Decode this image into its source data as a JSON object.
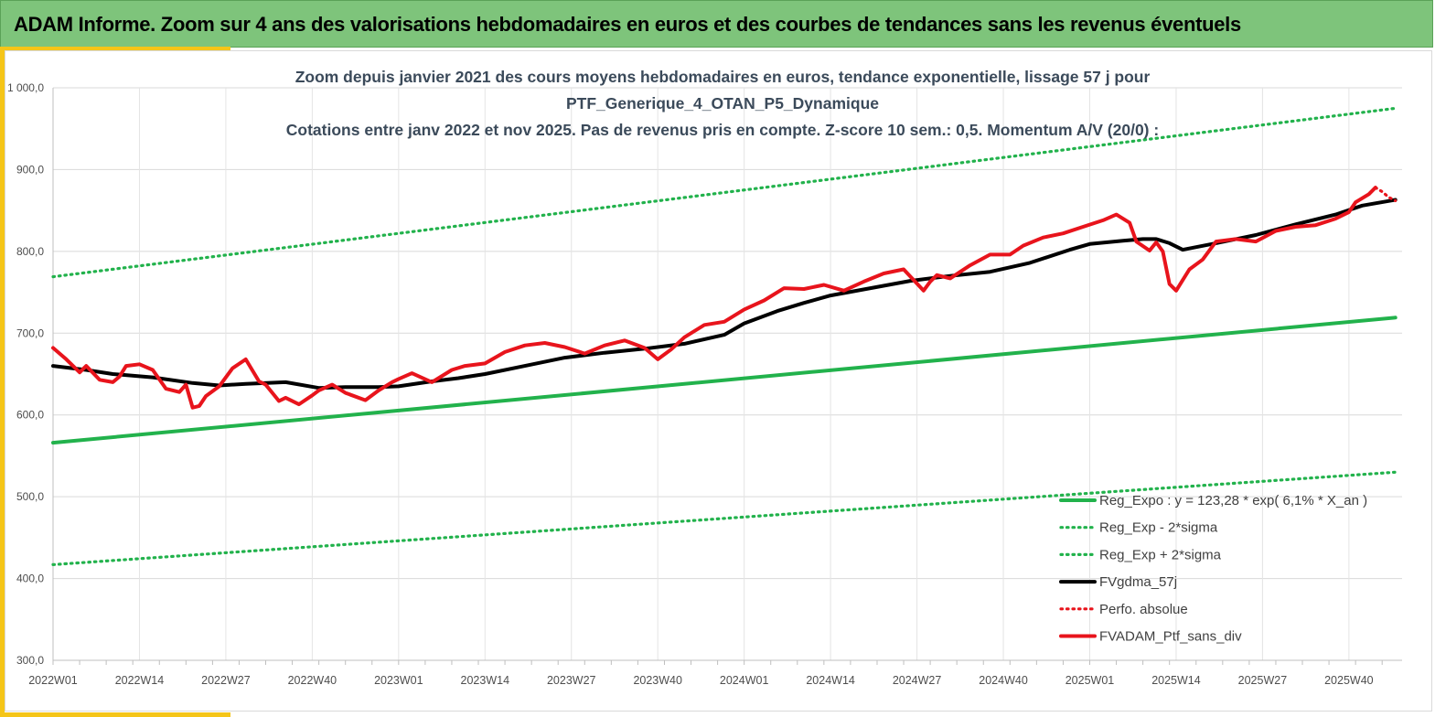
{
  "header": {
    "title": "ADAM Informe. Zoom sur 4 ans des valorisations hebdomadaires en euros et des courbes de tendances sans les revenus éventuels"
  },
  "colors": {
    "header_bg": "#7ec47b",
    "accent": "#f5c518",
    "trend": "#22b24c",
    "moving_avg": "#000000",
    "portfolio": "#e8141c"
  },
  "chart_data": {
    "type": "line",
    "title_lines": [
      "Zoom depuis janvier 2021 des cours moyens hebdomadaires  en euros, tendance exponentielle, lissage 57 j pour",
      "PTF_Generique_4_OTAN_P5_Dynamique",
      "Cotations entre janv 2022 et nov 2025. Pas de revenus pris en compte. Z-score 10 sem.: 0,5. Momentum A/V (20/0) :"
    ],
    "x_tick_labels": [
      "2022W01",
      "2022W14",
      "2022W27",
      "2022W40",
      "2023W01",
      "2023W14",
      "2023W27",
      "2023W40",
      "2024W01",
      "2024W14",
      "2024W27",
      "2024W40",
      "2025W01",
      "2025W14",
      "2025W27",
      "2025W40"
    ],
    "y_tick_labels": [
      "300,0",
      "400,0",
      "500,0",
      "600,0",
      "700,0",
      "800,0",
      "900,0",
      "1 000,0"
    ],
    "ylim": [
      300,
      1000
    ],
    "grid": true,
    "legend_position": "bottom-right",
    "series": [
      {
        "name": "Reg_Expo : y = 123,28 * exp( 6,1% *  X_an )",
        "style": "solid-thick",
        "color": "#22b24c",
        "x": [
          "2022W01",
          "2025W47"
        ],
        "values": [
          566,
          719
        ]
      },
      {
        "name": "Reg_Exp - 2*sigma",
        "style": "dotted",
        "color": "#22b24c",
        "x": [
          "2022W01",
          "2025W47"
        ],
        "values": [
          417,
          530
        ]
      },
      {
        "name": "Reg_Exp + 2*sigma",
        "style": "dotted",
        "color": "#22b24c",
        "x": [
          "2022W01",
          "2025W47"
        ],
        "values": [
          769,
          975
        ]
      },
      {
        "name": "FVgdma_57j",
        "style": "solid-thick",
        "color": "#000000",
        "x": [
          "2022W01",
          "2022W06",
          "2022W10",
          "2022W16",
          "2022W22",
          "2022W26",
          "2022W30",
          "2022W36",
          "2022W41",
          "2022W45",
          "2022W50",
          "2023W01",
          "2023W06",
          "2023W10",
          "2023W14",
          "2023W20",
          "2023W26",
          "2023W32",
          "2023W38",
          "2023W44",
          "2023W50",
          "2024W01",
          "2024W06",
          "2024W10",
          "2024W14",
          "2024W20",
          "2024W26",
          "2024W32",
          "2024W38",
          "2024W44",
          "2024W50",
          "2025W01",
          "2025W06",
          "2025W09",
          "2025W11",
          "2025W13",
          "2025W15",
          "2025W20",
          "2025W26",
          "2025W32",
          "2025W38",
          "2025W42",
          "2025W47"
        ],
        "values": [
          660,
          655,
          650,
          646,
          639,
          636,
          638,
          640,
          633,
          634,
          634,
          635,
          641,
          645,
          650,
          660,
          670,
          676,
          681,
          687,
          698,
          712,
          727,
          737,
          746,
          755,
          764,
          770,
          775,
          786,
          802,
          809,
          813,
          815,
          815,
          810,
          802,
          810,
          820,
          833,
          845,
          856,
          863
        ]
      },
      {
        "name": "Perfo. absolue",
        "style": "dotted",
        "color": "#e8141c",
        "x": [
          "2025W44",
          "2025W45",
          "2025W46",
          "2025W47"
        ],
        "values": [
          878,
          873,
          866,
          862
        ]
      },
      {
        "name": "FVADAM_Ptf_sans_div",
        "style": "solid-thick",
        "color": "#e8141c",
        "x": [
          "2022W01",
          "2022W03",
          "2022W05",
          "2022W06",
          "2022W08",
          "2022W10",
          "2022W11",
          "2022W12",
          "2022W14",
          "2022W16",
          "2022W18",
          "2022W20",
          "2022W21",
          "2022W22",
          "2022W23",
          "2022W24",
          "2022W26",
          "2022W28",
          "2022W30",
          "2022W32",
          "2022W33",
          "2022W35",
          "2022W36",
          "2022W38",
          "2022W40",
          "2022W41",
          "2022W43",
          "2022W45",
          "2022W48",
          "2022W50",
          "2022W52",
          "2023W01",
          "2023W03",
          "2023W06",
          "2023W09",
          "2023W11",
          "2023W14",
          "2023W17",
          "2023W20",
          "2023W23",
          "2023W26",
          "2023W29",
          "2023W32",
          "2023W35",
          "2023W38",
          "2023W40",
          "2023W42",
          "2023W44",
          "2023W47",
          "2023W50",
          "2024W01",
          "2024W04",
          "2024W07",
          "2024W10",
          "2024W13",
          "2024W16",
          "2024W19",
          "2024W22",
          "2024W25",
          "2024W28",
          "2024W29",
          "2024W30",
          "2024W32",
          "2024W35",
          "2024W38",
          "2024W41",
          "2024W43",
          "2024W46",
          "2024W49",
          "2024W52",
          "2025W03",
          "2025W05",
          "2025W07",
          "2025W08",
          "2025W10",
          "2025W11",
          "2025W12",
          "2025W13",
          "2025W14",
          "2025W15",
          "2025W16",
          "2025W18",
          "2025W20",
          "2025W23",
          "2025W26",
          "2025W29",
          "2025W32",
          "2025W35",
          "2025W38",
          "2025W40",
          "2025W41",
          "2025W43",
          "2025W44"
        ],
        "values": [
          682,
          668,
          652,
          660,
          643,
          640,
          647,
          660,
          662,
          655,
          632,
          628,
          637,
          609,
          611,
          623,
          635,
          657,
          668,
          641,
          637,
          617,
          621,
          613,
          624,
          630,
          637,
          627,
          618,
          630,
          640,
          644,
          651,
          640,
          655,
          660,
          663,
          677,
          685,
          688,
          683,
          675,
          685,
          691,
          682,
          668,
          680,
          695,
          710,
          714,
          729,
          740,
          755,
          754,
          759,
          752,
          763,
          773,
          778,
          752,
          763,
          771,
          767,
          783,
          796,
          796,
          807,
          817,
          822,
          830,
          838,
          845,
          835,
          812,
          801,
          811,
          800,
          760,
          752,
          765,
          778,
          790,
          812,
          815,
          812,
          825,
          830,
          832,
          840,
          848,
          860,
          870,
          878
        ]
      }
    ]
  }
}
